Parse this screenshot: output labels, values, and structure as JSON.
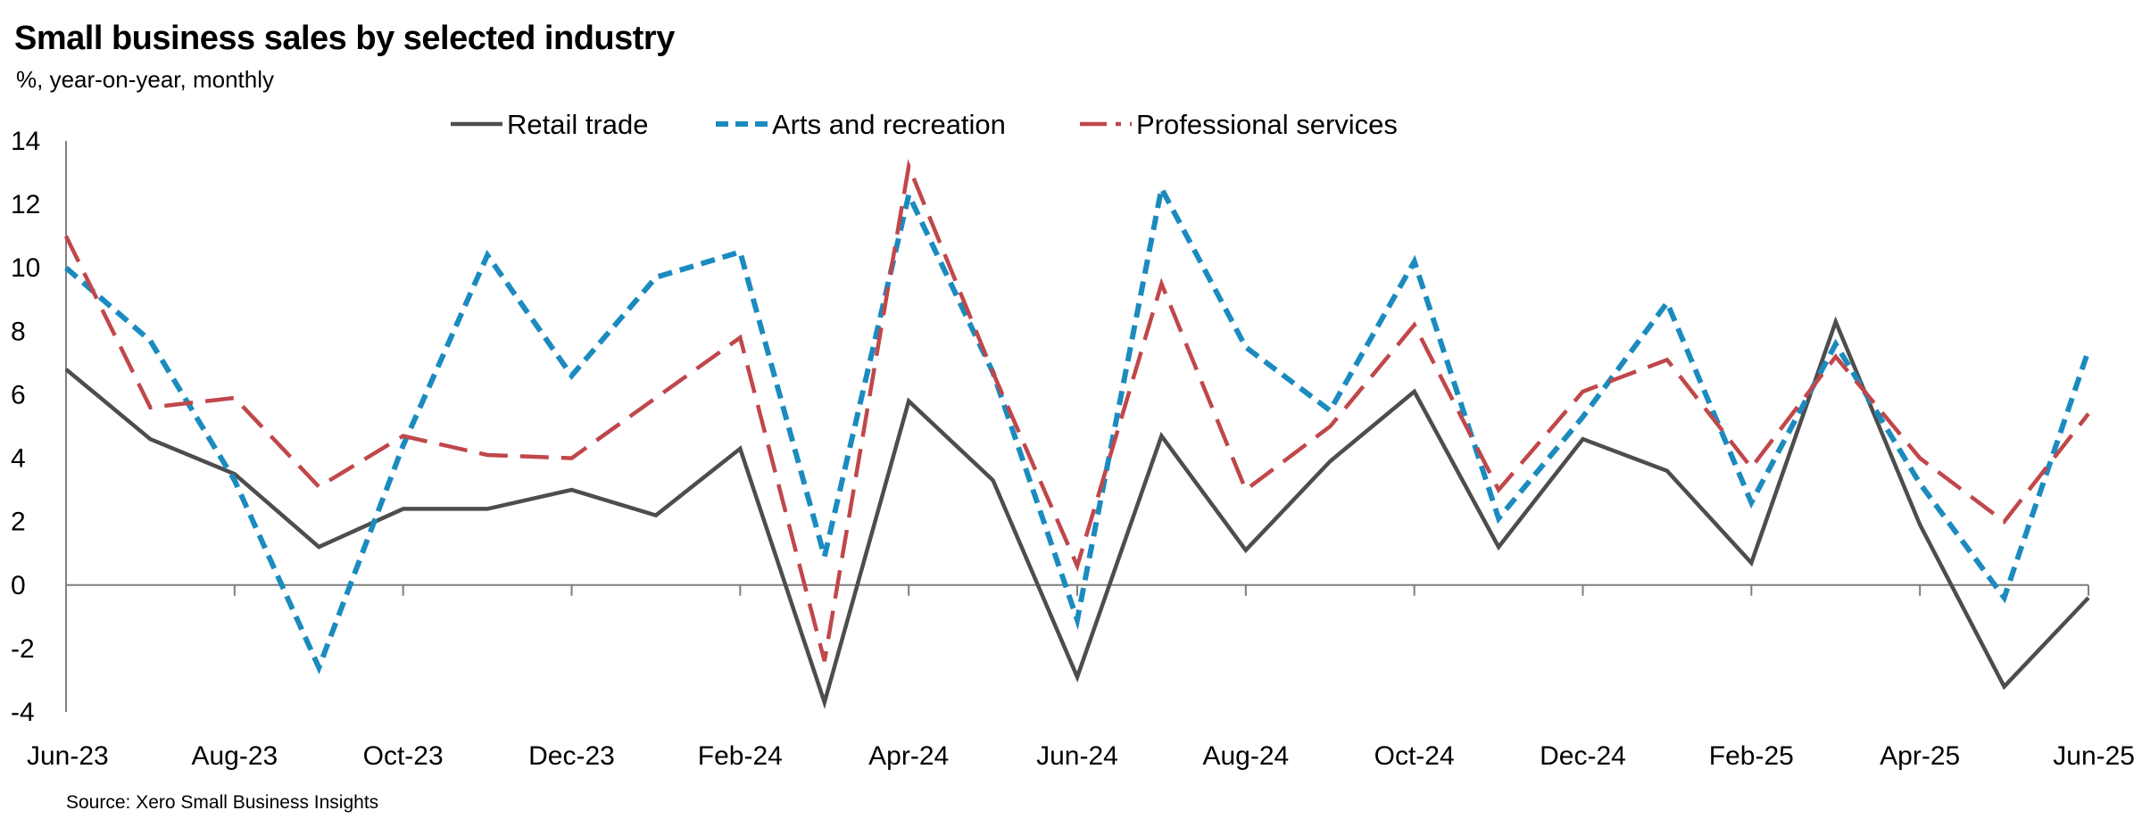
{
  "header": {
    "title": "Small business sales by selected industry",
    "subtitle": "%, year-on-year, monthly"
  },
  "footer": {
    "source": "Source: Xero Small Business Insights"
  },
  "chart_data": {
    "type": "line",
    "title": "Small business sales by selected industry",
    "subtitle": "%, year-on-year, monthly",
    "ylim": [
      -4,
      14
    ],
    "yticks": [
      -4,
      -2,
      0,
      2,
      4,
      6,
      8,
      10,
      12,
      14
    ],
    "x": [
      "Jun-23",
      "Jul-23",
      "Aug-23",
      "Sep-23",
      "Oct-23",
      "Nov-23",
      "Dec-23",
      "Jan-24",
      "Feb-24",
      "Mar-24",
      "Apr-24",
      "May-24",
      "Jun-24",
      "Jul-24",
      "Aug-24",
      "Sep-24",
      "Oct-24",
      "Nov-24",
      "Dec-24",
      "Jan-25",
      "Feb-25",
      "Mar-25",
      "Apr-25",
      "May-25",
      "Jun-25"
    ],
    "xtick_labels": [
      "Jun-23",
      "Aug-23",
      "Oct-23",
      "Dec-23",
      "Feb-24",
      "Apr-24",
      "Jun-24",
      "Aug-24",
      "Oct-24",
      "Dec-24",
      "Feb-25",
      "Apr-25",
      "Jun-25"
    ],
    "legend_position": "top",
    "grid": false,
    "series": [
      {
        "name": "Retail trade",
        "color": "#4d4d4d",
        "style": "solid",
        "values": [
          6.8,
          4.6,
          3.5,
          1.2,
          2.4,
          2.4,
          3.0,
          2.2,
          4.3,
          -3.7,
          5.8,
          3.3,
          -2.9,
          4.7,
          1.1,
          3.9,
          6.1,
          1.2,
          4.6,
          3.6,
          0.7,
          8.3,
          1.9,
          -3.2,
          -0.4
        ]
      },
      {
        "name": "Arts and recreation",
        "color": "#1b8bbf",
        "style": "dashed",
        "values": [
          10.0,
          7.7,
          3.3,
          -2.6,
          4.4,
          10.4,
          6.6,
          9.7,
          10.5,
          0.9,
          12.3,
          6.7,
          -1.1,
          12.5,
          7.5,
          5.5,
          10.2,
          2.1,
          5.3,
          8.9,
          2.6,
          7.6,
          3.2,
          -0.4,
          7.4
        ]
      },
      {
        "name": "Professional services",
        "color": "#c0474a",
        "style": "long-dash",
        "values": [
          11.0,
          5.6,
          5.9,
          3.1,
          4.7,
          4.1,
          4.0,
          5.9,
          7.8,
          -2.4,
          13.2,
          6.7,
          0.6,
          9.5,
          3.0,
          5.0,
          8.2,
          3.0,
          6.1,
          7.1,
          3.7,
          7.2,
          4.0,
          2.0,
          5.4
        ]
      }
    ]
  }
}
